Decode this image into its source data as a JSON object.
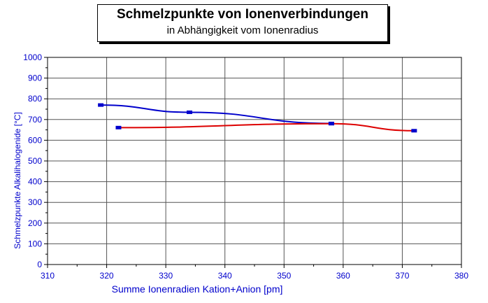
{
  "chart_data": {
    "type": "line",
    "title": "Schmelzpunkte von Ionenverbindungen",
    "subtitle": "in Abhängigkeit vom Ionenradius",
    "xlabel": "Summe Ionenradien Kation+Anion [pm]",
    "ylabel": "Schmelzpunkte Alkalihalogenide [°C]",
    "xlim": [
      310,
      380
    ],
    "ylim": [
      0,
      1000
    ],
    "xticks": [
      310,
      320,
      330,
      340,
      350,
      360,
      370,
      380
    ],
    "yticks": [
      0,
      100,
      200,
      300,
      400,
      500,
      600,
      700,
      800,
      900,
      1000
    ],
    "grid": true,
    "legend": "none",
    "colors": {
      "axis_text": "#0000cc",
      "grid": "#555555",
      "series_blue": "#0000cc",
      "series_red": "#dd0000"
    },
    "series": [
      {
        "color": "#0000cc",
        "x": [
          319,
          334,
          358
        ],
        "y": [
          770,
          735,
          681
        ]
      },
      {
        "color": "#dd0000",
        "x": [
          322,
          358,
          372
        ],
        "y": [
          661,
          680,
          646
        ]
      }
    ]
  }
}
